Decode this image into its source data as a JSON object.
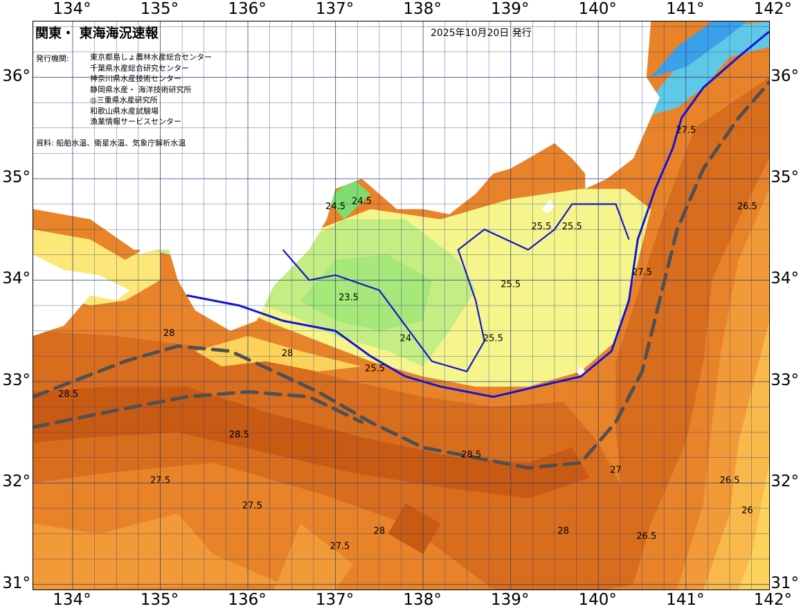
{
  "title": "関東・ 東海海況速報",
  "issued": "2025年10月20日 発行",
  "issuer_label": "発行機関:",
  "issuers": [
    "東京都島しょ農林水産総合センター",
    "千葉県水産総合研究センター",
    "神奈川県水産技術センター",
    "静岡県水産・ 海洋技術研究所",
    "◎三重県水産研究所",
    "和歌山県水産試験場",
    "漁業情報サービスセンター"
  ],
  "source": "資料: 船舶水温、衛星水温、気象庁解析水温",
  "axes": {
    "lon_ticks_top": [
      "134°",
      "135°",
      "136°",
      "137°",
      "138°",
      "139°",
      "140°",
      "141°",
      "142°"
    ],
    "lon_ticks_bottom": [
      "134°",
      "135°",
      "136°",
      "137°",
      "138°",
      "139°",
      "140°",
      "141°",
      "142°"
    ],
    "lat_ticks_left": [
      "36°",
      "35°",
      "34°",
      "33°",
      "32°",
      "31°"
    ],
    "lat_ticks_right": [
      "36°",
      "35°",
      "34°",
      "33°",
      "32°",
      "31°"
    ],
    "lon_range": [
      133.55,
      141.95
    ],
    "lat_range": [
      30.95,
      36.55
    ]
  },
  "colors": {
    "temp_21": "#3aa0ea",
    "temp_22": "#5fc8e6",
    "temp_23": "#7fdc6e",
    "temp_23_5": "#a6e87a",
    "temp_24": "#c4ee84",
    "temp_24_5": "#dff28a",
    "temp_25": "#f5f58c",
    "temp_25_5": "#fbe878",
    "temp_26": "#fcd25a",
    "temp_26_5": "#f8b84a",
    "temp_27": "#f29a38",
    "temp_27_5": "#e8832a",
    "temp_28": "#d86d1e",
    "temp_28_5": "#c85a14",
    "land": "#ffffff",
    "front_line": "#1414d2",
    "kuroshio_axis": "#505050",
    "grid": "#283c7a"
  },
  "map_labels": [
    {
      "text": "24.5",
      "lon": 137.0,
      "lat": 34.7
    },
    {
      "text": "24.5",
      "lon": 137.3,
      "lat": 34.75
    },
    {
      "text": "23.5",
      "lon": 137.15,
      "lat": 33.8
    },
    {
      "text": "25.5",
      "lon": 139.35,
      "lat": 34.5
    },
    {
      "text": "25.5",
      "lon": 139.7,
      "lat": 34.5
    },
    {
      "text": "25.5",
      "lon": 139.0,
      "lat": 33.93
    },
    {
      "text": "25.5",
      "lon": 138.8,
      "lat": 33.4
    },
    {
      "text": "25.5",
      "lon": 137.45,
      "lat": 33.1
    },
    {
      "text": "28",
      "lon": 135.1,
      "lat": 33.45
    },
    {
      "text": "28",
      "lon": 136.45,
      "lat": 33.25
    },
    {
      "text": "28.5",
      "lon": 133.95,
      "lat": 32.85
    },
    {
      "text": "28.5",
      "lon": 135.9,
      "lat": 32.45
    },
    {
      "text": "28.5",
      "lon": 138.55,
      "lat": 32.25
    },
    {
      "text": "27.5",
      "lon": 135.0,
      "lat": 32.0
    },
    {
      "text": "27.5",
      "lon": 136.05,
      "lat": 31.75
    },
    {
      "text": "27.5",
      "lon": 137.05,
      "lat": 31.35
    },
    {
      "text": "27.5",
      "lon": 140.5,
      "lat": 34.05
    },
    {
      "text": "27.5",
      "lon": 141.0,
      "lat": 35.45
    },
    {
      "text": "26.5",
      "lon": 141.7,
      "lat": 34.7
    },
    {
      "text": "26.5",
      "lon": 141.5,
      "lat": 32.0
    },
    {
      "text": "26.5",
      "lon": 140.55,
      "lat": 31.45
    },
    {
      "text": "26",
      "lon": 141.7,
      "lat": 31.7
    },
    {
      "text": "27",
      "lon": 140.2,
      "lat": 32.1
    },
    {
      "text": "28",
      "lon": 139.6,
      "lat": 31.5
    },
    {
      "text": "28",
      "lon": 137.5,
      "lat": 31.5
    },
    {
      "text": "24",
      "lon": 137.8,
      "lat": 33.4
    }
  ]
}
